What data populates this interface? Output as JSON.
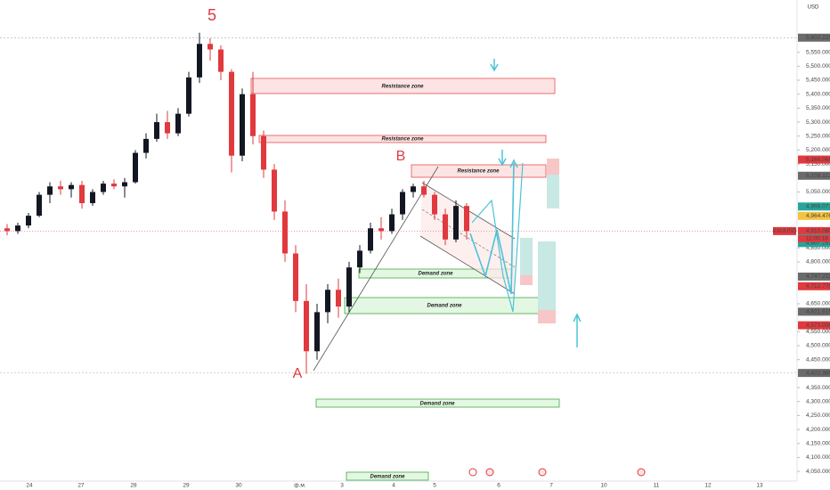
{
  "chart_data": {
    "type": "candlestick",
    "symbol": "XAUUSD",
    "currency": "USD",
    "annotations": [
      "5",
      "B",
      "A"
    ],
    "zones": [
      "Resistance  zone",
      "Resistance  zone",
      "Resistance  zone",
      "Demand zone",
      "Demand zone",
      "Demand zone",
      "Demand zone"
    ],
    "up_color": "#131722",
    "down_color": "#e0393e",
    "ylim": [
      4025,
      5737
    ],
    "yticks": [
      {
        "value": 4050,
        "label": "4,050.000"
      },
      {
        "value": 4100,
        "label": "4,100.000"
      },
      {
        "value": 4150,
        "label": "4,150.000"
      },
      {
        "value": 4200,
        "label": "4,200.000"
      },
      {
        "value": 4250,
        "label": "4,250.000"
      },
      {
        "value": 4300,
        "label": "4,300.000"
      },
      {
        "value": 4350,
        "label": "4,350.000"
      },
      {
        "value": 4450,
        "label": "4,450.000"
      },
      {
        "value": 4500,
        "label": "4,500.000"
      },
      {
        "value": 4550,
        "label": "4,550.000"
      },
      {
        "value": 4650,
        "label": "4,650.000"
      },
      {
        "value": 4800,
        "label": "4,800.000"
      },
      {
        "value": 4850,
        "label": "4,850.000"
      },
      {
        "value": 5050,
        "label": "5,050.000"
      },
      {
        "value": 5150,
        "label": "5,150.000"
      },
      {
        "value": 5200,
        "label": "5,200.000"
      },
      {
        "value": 5250,
        "label": "5,250.000"
      },
      {
        "value": 5300,
        "label": "5,300.000"
      },
      {
        "value": 5350,
        "label": "5,350.000"
      },
      {
        "value": 5400,
        "label": "5,400.000"
      },
      {
        "value": 5450,
        "label": "5,450.000"
      },
      {
        "value": 5500,
        "label": "5,500.000"
      },
      {
        "value": 5550,
        "label": "5,550.000"
      }
    ],
    "price_labels": [
      {
        "value": 5602.225,
        "label": "5,602.225",
        "color": "#6b6b6b"
      },
      {
        "value": 5166.068,
        "label": "5,166.068",
        "color": "#e0393e"
      },
      {
        "value": 5108.112,
        "label": "5,108.112",
        "color": "#6b6b6b"
      },
      {
        "value": 4998.077,
        "label": "4,998.077",
        "color": "#26a69a"
      },
      {
        "value": 4964.476,
        "label": "4,964.476",
        "color": "#f5c242"
      },
      {
        "value": 4910.08,
        "label": "4,910.080",
        "color": "#e0393e"
      },
      {
        "value": 4884.729,
        "label": "4,884.729",
        "color": "#26a69a"
      },
      {
        "value": 4867.292,
        "label": "4,867.292",
        "color": "#26a69a"
      },
      {
        "value": 4747.222,
        "label": "4,747.222",
        "color": "#6b6b6b"
      },
      {
        "value": 4712.776,
        "label": "4,712.776",
        "color": "#e0393e"
      },
      {
        "value": 4621.616,
        "label": "4,621.616",
        "color": "#6b6b6b"
      },
      {
        "value": 4573.006,
        "label": "4,573.006",
        "color": "#e0393e"
      },
      {
        "value": 4402.38,
        "label": "4,402.380",
        "color": "#6b6b6b"
      }
    ],
    "countdown": "11:05:18",
    "xtick_labels": [
      "24",
      "27",
      "28",
      "29",
      "30",
      "ф.м.",
      "3",
      "4",
      "5",
      "6",
      "7",
      "10",
      "11",
      "12",
      "13"
    ],
    "open": [
      4920,
      4910,
      4930,
      4965,
      5040,
      5070,
      5060,
      5075,
      5010,
      5050,
      5080,
      5070,
      5085,
      5190,
      5240,
      5300,
      5260,
      5330,
      5460,
      5580,
      5560,
      5480,
      5180,
      5400,
      5250,
      5130,
      4980,
      4830,
      4660,
      4480,
      4620,
      4700,
      4640,
      4780,
      4840,
      4920,
      4910,
      4970,
      5050,
      5070,
      5040,
      4970,
      4880,
      5000
    ],
    "high": [
      4935,
      4940,
      4975,
      5050,
      5085,
      5090,
      5085,
      5090,
      5060,
      5090,
      5095,
      5100,
      5200,
      5260,
      5330,
      5340,
      5350,
      5480,
      5620,
      5600,
      5575,
      5490,
      5420,
      5480,
      5270,
      5150,
      5020,
      4860,
      4720,
      4650,
      4720,
      4740,
      4800,
      4860,
      4940,
      4960,
      4990,
      5060,
      5080,
      5090,
      5050,
      4990,
      5020,
      5010
    ],
    "low": [
      4895,
      4900,
      4920,
      4960,
      5010,
      5040,
      5030,
      4990,
      5000,
      5040,
      5060,
      5030,
      5080,
      5170,
      5230,
      5240,
      5250,
      5320,
      5440,
      5520,
      5450,
      5120,
      5160,
      5220,
      5100,
      4950,
      4800,
      4620,
      4400,
      4450,
      4580,
      4600,
      4620,
      4760,
      4830,
      4880,
      4900,
      4950,
      5030,
      5030,
      4950,
      4860,
      4870,
      4880
    ],
    "close": [
      4910,
      4930,
      4965,
      5040,
      5070,
      5060,
      5075,
      5010,
      5050,
      5080,
      5070,
      5085,
      5190,
      5240,
      5300,
      5260,
      5330,
      5460,
      5580,
      5560,
      5480,
      5180,
      5400,
      5250,
      5130,
      4980,
      4830,
      4660,
      4480,
      4620,
      4700,
      4640,
      4780,
      4840,
      4920,
      4910,
      4970,
      5050,
      5070,
      5040,
      4970,
      4880,
      5000,
      4910
    ]
  }
}
